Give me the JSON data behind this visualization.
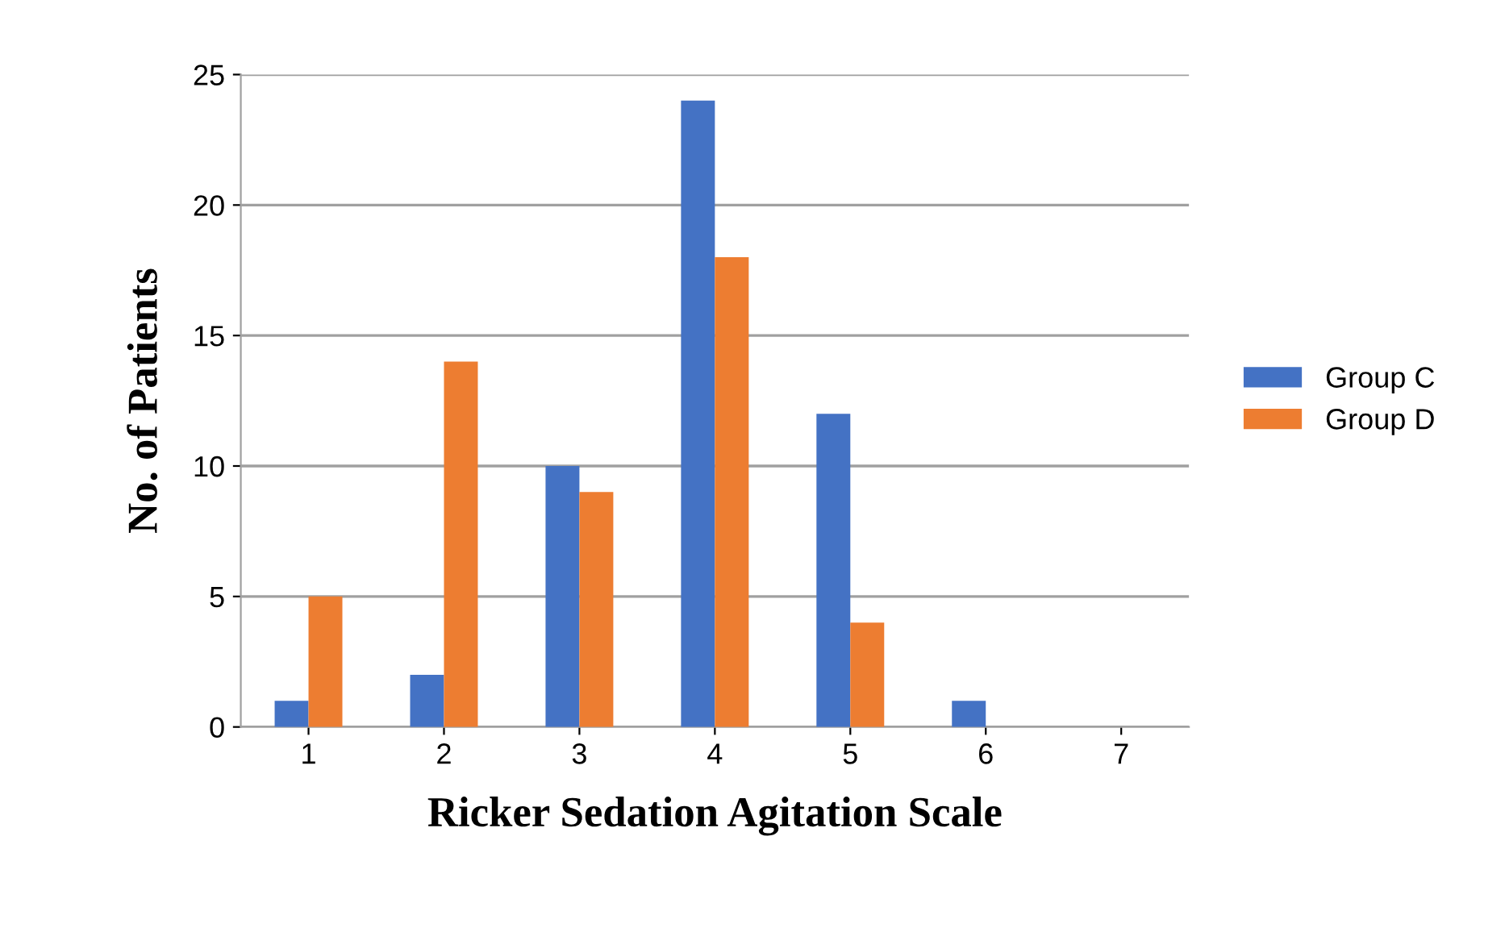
{
  "chart_data": {
    "type": "bar",
    "xlabel": "Ricker Sedation Agitation Scale",
    "ylabel": "No. of Patients",
    "categories": [
      "1",
      "2",
      "3",
      "4",
      "5",
      "6",
      "7"
    ],
    "series": [
      {
        "name": "Group C",
        "color": "#4472c4",
        "values": [
          1,
          2,
          10,
          24,
          12,
          1,
          0
        ]
      },
      {
        "name": "Group D",
        "color": "#ed7d31",
        "values": [
          5,
          14,
          9,
          18,
          4,
          0,
          0
        ]
      }
    ],
    "ylim": [
      0,
      25
    ],
    "yticks": [
      0,
      5,
      10,
      15,
      20,
      25
    ],
    "grid": "y",
    "legend": "right"
  }
}
